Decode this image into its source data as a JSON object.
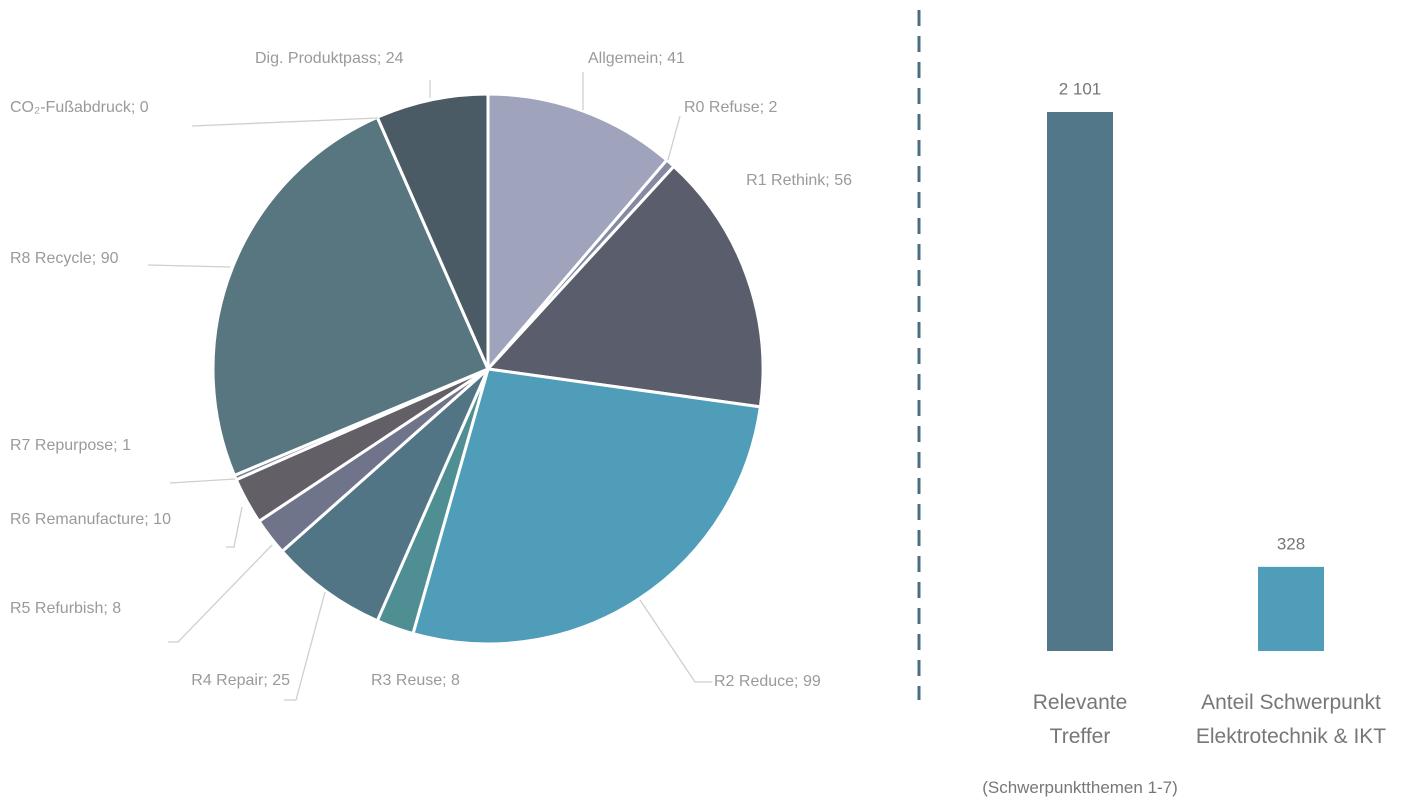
{
  "chart_data": [
    {
      "type": "pie",
      "values": [
        41,
        2,
        56,
        99,
        8,
        25,
        8,
        10,
        1,
        90,
        0,
        24
      ],
      "value_labels": [
        "Allgemein; 41",
        "R0 Refuse; 2",
        "R1 Rethink; 56",
        "R2 Reduce; 99",
        "R3 Reuse; 8",
        "R4 Repair; 25",
        "R5 Refurbish; 8",
        "R6 Remanufacture; 10",
        "R7 Repurpose; 1",
        "R8 Recycle; 90",
        "CO₂-Fußabdruck; 0",
        "Dig. Produktpass; 24"
      ],
      "colors": [
        "#9fa3bc",
        "#858aa2",
        "#5a5d6c",
        "#4f9db8",
        "#4f8e93",
        "#527585",
        "#6f748a",
        "#625f66",
        "#7a7f92",
        "#57767f",
        "#bbbbbb",
        "#4b5b66"
      ]
    },
    {
      "type": "bar",
      "categories": [
        "Relevante Treffer",
        "Anteil Schwerpunkt Elektrotechnik & IKT"
      ],
      "values": [
        2101,
        328
      ],
      "value_labels": [
        "2 101",
        "328"
      ],
      "colors": [
        "#527788",
        "#4f9db8"
      ],
      "note": "(Schwerpunktthemen 1-7)"
    }
  ]
}
